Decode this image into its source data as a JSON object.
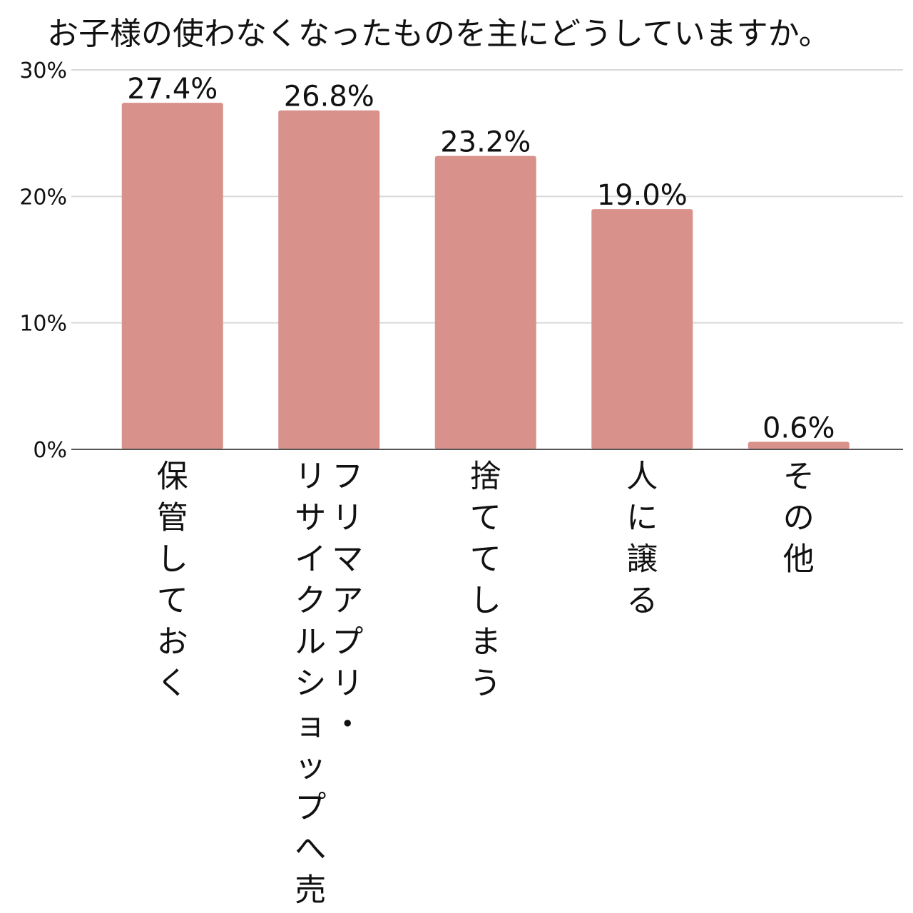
{
  "chart_data": {
    "type": "bar",
    "title": "お子様の使わなくなったものを主にどうしていますか。",
    "xlabel": "",
    "ylabel": "",
    "categories": [
      [
        "保管しておく"
      ],
      [
        "フリマアプリ・",
        "リサイクルショップへ売る"
      ],
      [
        "捨ててしまう"
      ],
      [
        "人に譲る"
      ],
      [
        "その他"
      ]
    ],
    "values": [
      27.4,
      26.8,
      23.2,
      19.0,
      0.6
    ],
    "value_labels": [
      "27.4%",
      "26.8%",
      "23.2%",
      "19.0%",
      "0.6%"
    ],
    "y_ticks": [
      0,
      10,
      20,
      30
    ],
    "y_tick_labels": [
      "0%",
      "10%",
      "20%",
      "30%"
    ],
    "ylim": [
      0,
      30
    ],
    "grid": true,
    "legend": "none",
    "colors": {
      "bar": "#d9918b",
      "grid": "#d9d9d9",
      "axis": "#555555",
      "text": "#111111"
    }
  }
}
